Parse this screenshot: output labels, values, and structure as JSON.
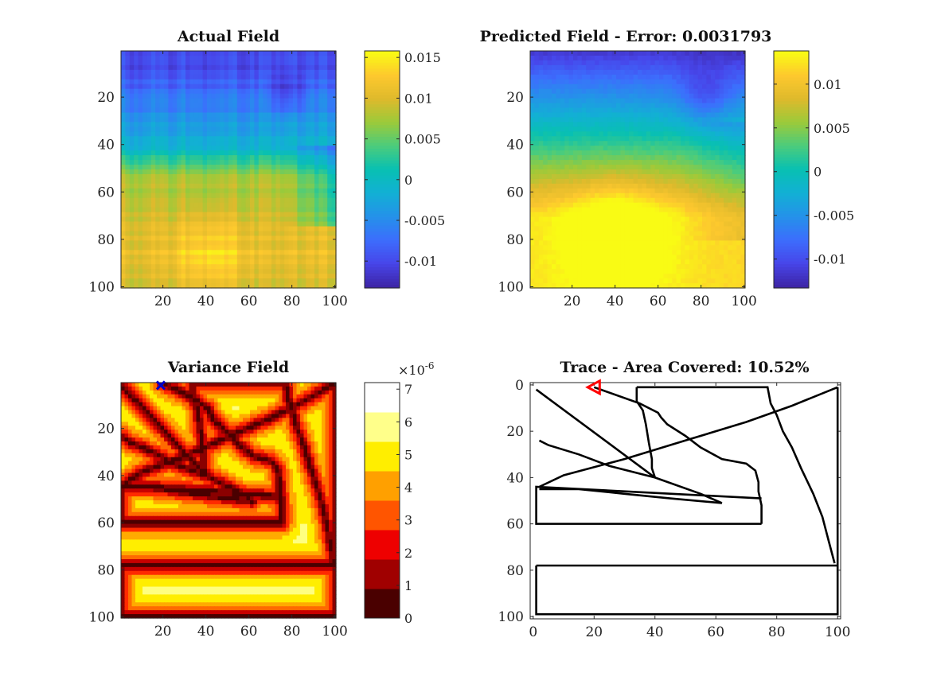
{
  "chart_data": [
    {
      "type": "heatmap",
      "id": "actual",
      "title": "Actual Field",
      "x_ticks": [
        "20",
        "40",
        "60",
        "80",
        "100"
      ],
      "y_ticks": [
        "20",
        "40",
        "60",
        "80",
        "100"
      ],
      "xlim": [
        1,
        100
      ],
      "ylim": [
        1,
        100
      ],
      "colormap": "parula",
      "colorbar": {
        "range": [
          -0.0133,
          0.0158
        ],
        "ticks": [
          "0.015",
          "0.01",
          "0.005",
          "0",
          "-0.005",
          "-0.01"
        ],
        "tick_values": [
          0.015,
          0.01,
          0.005,
          0,
          -0.005,
          -0.01
        ]
      },
      "field_description_values": {
        "min": -0.0133,
        "max": 0.0158,
        "row_profile": [
          [
            1,
            -0.011
          ],
          [
            20,
            -0.007
          ],
          [
            40,
            -0.001
          ],
          [
            55,
            0.008
          ],
          [
            70,
            0.009
          ],
          [
            85,
            0.011
          ],
          [
            100,
            0.01
          ]
        ]
      }
    },
    {
      "type": "heatmap",
      "id": "predicted",
      "title": "Predicted Field - Error: 0.0031793",
      "x_ticks": [
        "20",
        "40",
        "60",
        "80",
        "100"
      ],
      "y_ticks": [
        "20",
        "40",
        "60",
        "80",
        "100"
      ],
      "xlim": [
        1,
        100
      ],
      "ylim": [
        1,
        100
      ],
      "colormap": "parula",
      "colorbar": {
        "range": [
          -0.0133,
          0.0138
        ],
        "ticks": [
          "0.01",
          "0.005",
          "0",
          "-0.005",
          "-0.01"
        ],
        "tick_values": [
          0.01,
          0.005,
          0,
          -0.005,
          -0.01
        ]
      }
    },
    {
      "type": "heatmap",
      "id": "variance",
      "title": "Variance Field",
      "x_ticks": [
        "20",
        "40",
        "60",
        "80",
        "100"
      ],
      "y_ticks": [
        "20",
        "40",
        "60",
        "80",
        "100"
      ],
      "xlim": [
        1,
        100
      ],
      "ylim": [
        1,
        100
      ],
      "colormap": "hot",
      "colorbar": {
        "range": [
          0,
          7.2
        ],
        "exponent_label": "×10",
        "exponent_power": "-6",
        "ticks": [
          "7",
          "6",
          "5",
          "4",
          "3",
          "2",
          "1",
          "0"
        ],
        "tick_values": [
          7,
          6,
          5,
          4,
          3,
          2,
          1,
          0
        ]
      },
      "marker": {
        "x": 19,
        "y": 1,
        "color": "#0000cc",
        "shape": "x"
      }
    },
    {
      "type": "line",
      "id": "trace",
      "title": "Trace - Area Covered: 10.52%",
      "x_ticks": [
        "0",
        "20",
        "40",
        "60",
        "80",
        "100"
      ],
      "y_ticks": [
        "0",
        "20",
        "40",
        "60",
        "80",
        "100"
      ],
      "xlim": [
        -1,
        101
      ],
      "ylim": [
        -1,
        101
      ],
      "start_marker": {
        "x": 20,
        "y": 1,
        "color": "#ff0000",
        "shape": "triangle-left"
      },
      "series": [
        {
          "x": [
            1,
            40
          ],
          "y": [
            2,
            40
          ]
        },
        {
          "x": [
            20,
            35,
            41,
            42,
            44,
            50,
            55,
            62,
            70,
            73,
            74,
            74,
            75,
            75,
            75
          ],
          "y": [
            1,
            8,
            12,
            14,
            17,
            22,
            27,
            32,
            34,
            37,
            42,
            46,
            52,
            58,
            60
          ]
        },
        {
          "x": [
            75,
            1,
            1,
            75
          ],
          "y": [
            60,
            60,
            44,
            49
          ]
        },
        {
          "x": [
            2,
            5,
            15,
            25,
            40,
            55,
            62
          ],
          "y": [
            24,
            26,
            30,
            35,
            40,
            47,
            51
          ]
        },
        {
          "x": [
            62,
            45,
            30,
            15,
            2
          ],
          "y": [
            51,
            49,
            47,
            45,
            45
          ]
        },
        {
          "x": [
            2,
            10,
            30,
            50,
            70,
            85,
            100
          ],
          "y": [
            44,
            39,
            32,
            24,
            16,
            9,
            1
          ]
        },
        {
          "x": [
            34,
            34,
            36,
            37,
            38,
            39,
            39,
            40
          ],
          "y": [
            1,
            7,
            11,
            17,
            25,
            32,
            36,
            40
          ]
        },
        {
          "x": [
            34,
            77,
            78,
            80,
            82,
            85,
            88,
            92,
            95,
            97,
            99
          ],
          "y": [
            1,
            1,
            8,
            13,
            20,
            27,
            36,
            47,
            57,
            67,
            77
          ]
        },
        {
          "x": [
            100,
            100,
            100
          ],
          "y": [
            1,
            40,
            78
          ]
        },
        {
          "x": [
            1,
            100,
            100,
            1,
            1
          ],
          "y": [
            78,
            78,
            99,
            99,
            78
          ]
        }
      ]
    }
  ]
}
